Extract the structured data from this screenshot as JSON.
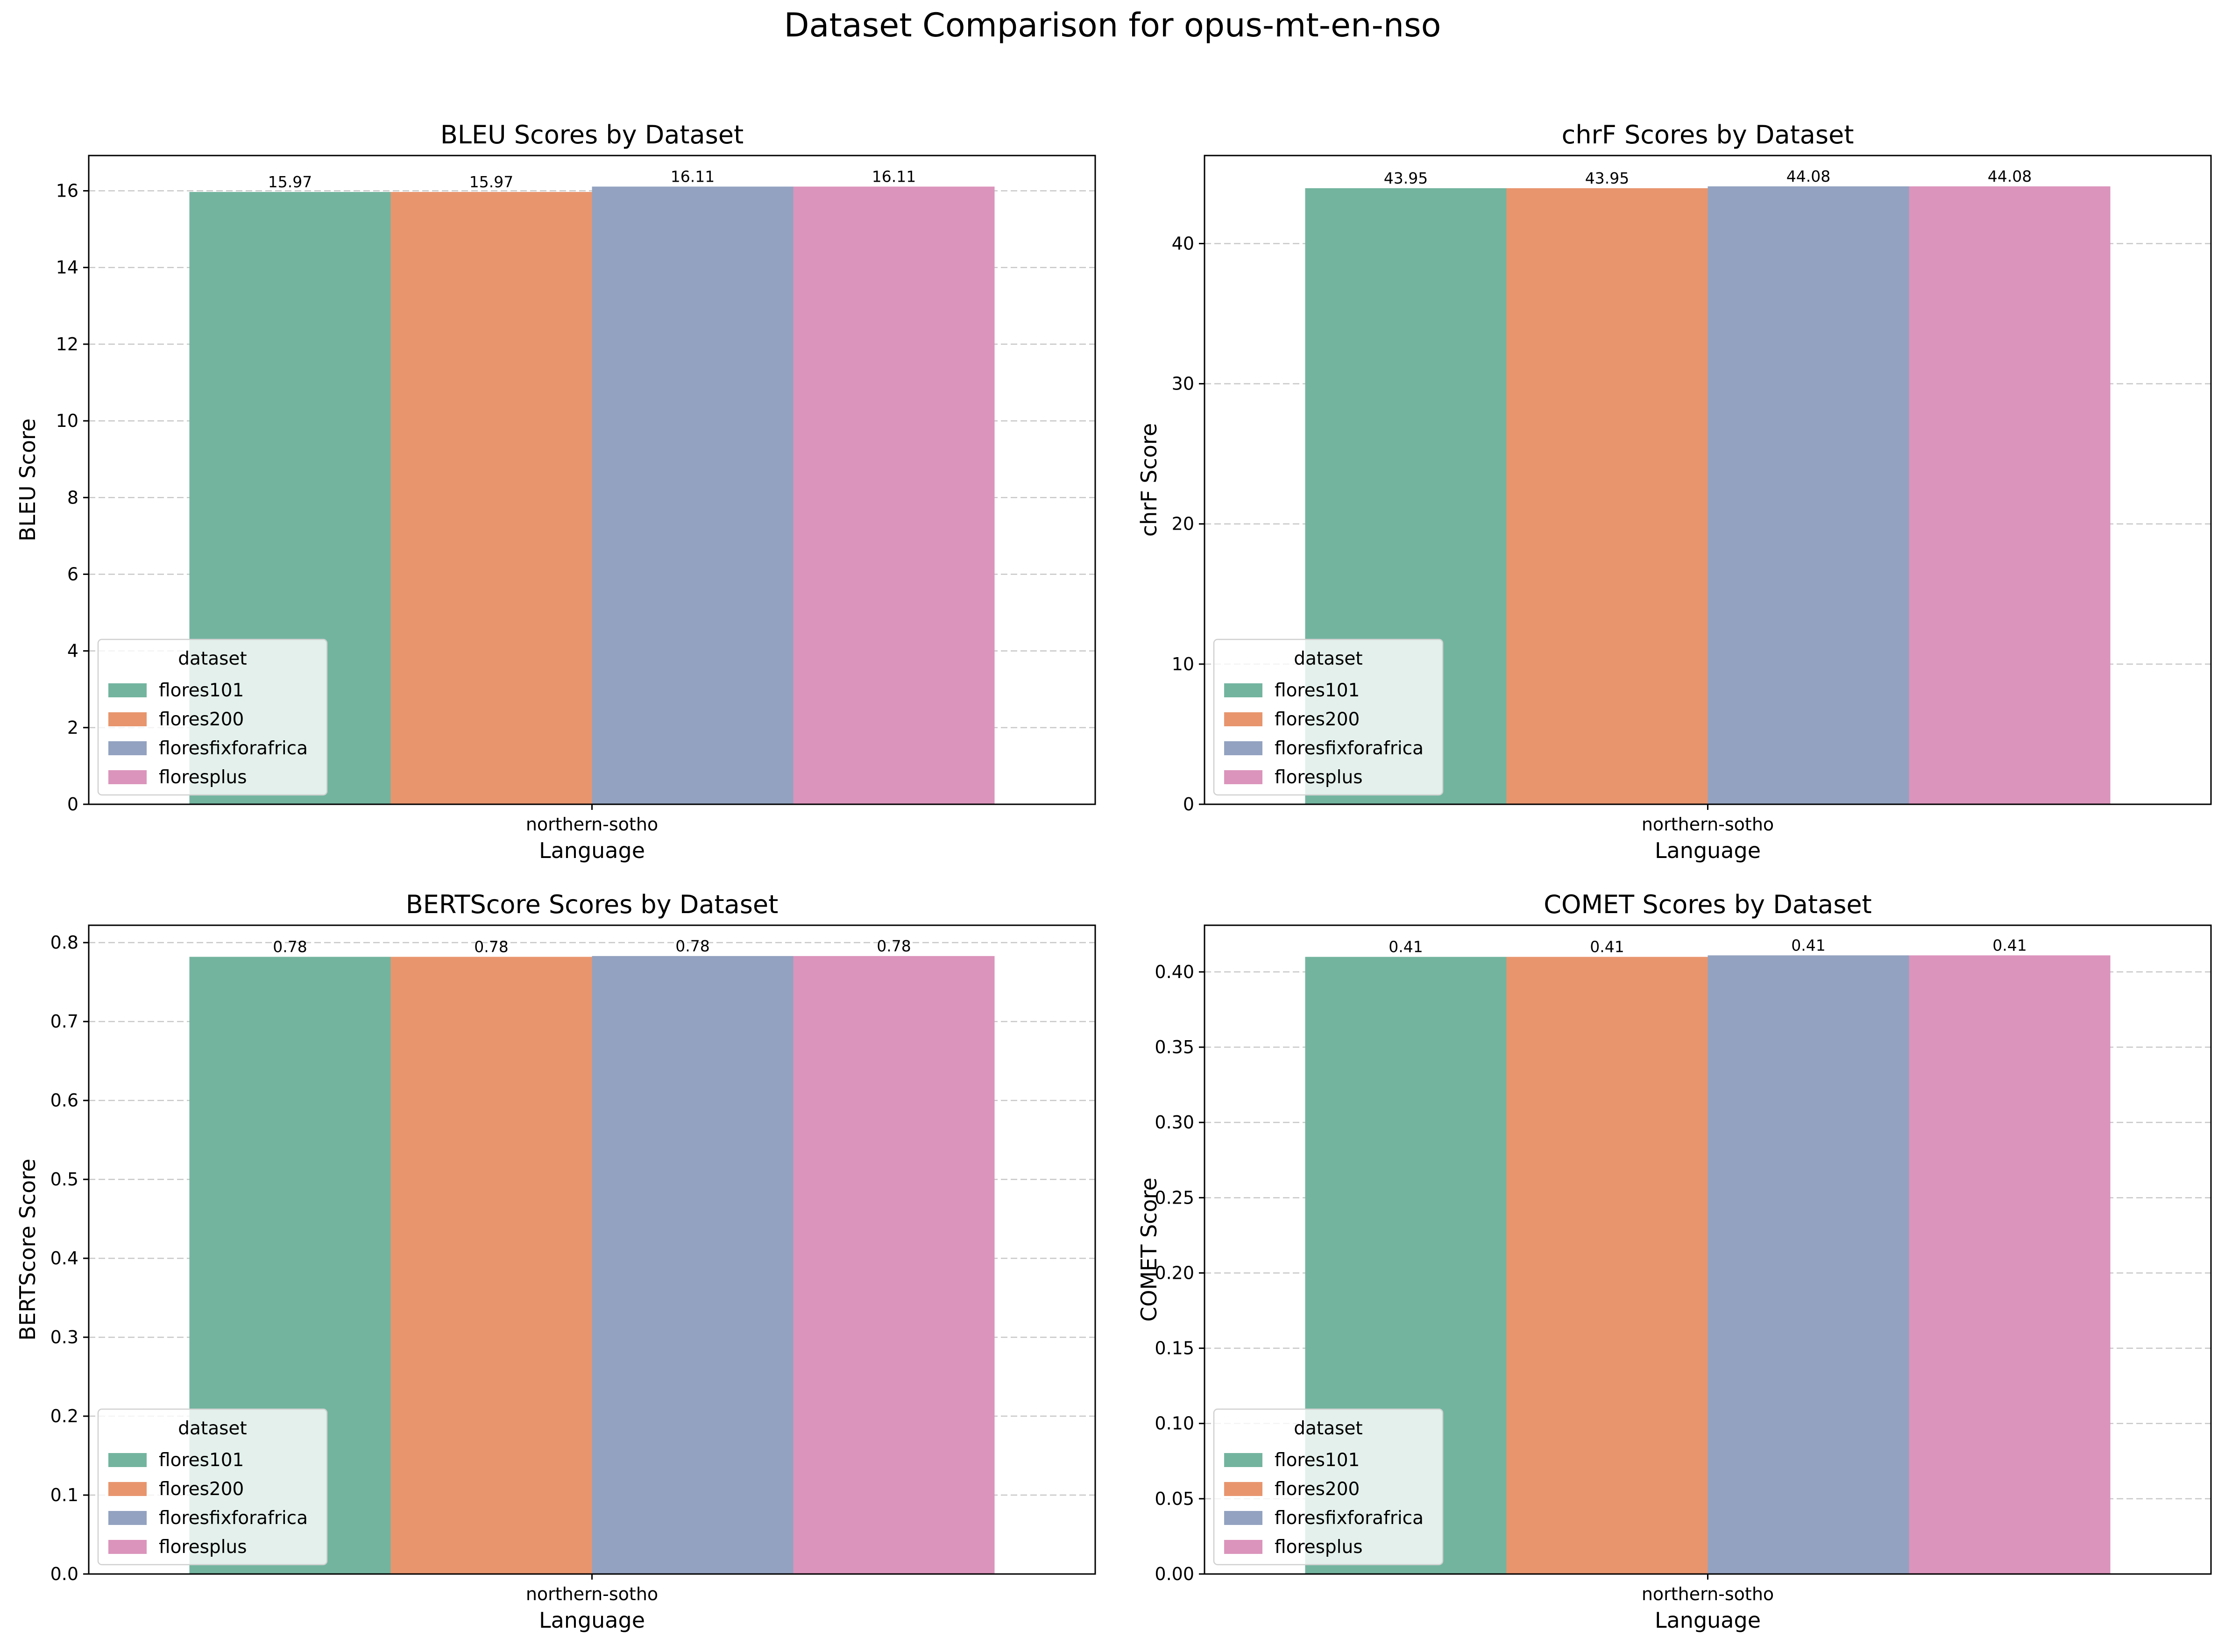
{
  "figure": {
    "title": "Dataset Comparison for opus-mt-en-nso"
  },
  "palette": {
    "flores101": "#73b49f",
    "flores200": "#e8956e",
    "floresfixforafrica": "#93a2c0",
    "floresplus": "#db94bc",
    "grid": "#c8c8c8",
    "legend_border": "#d0d0d0"
  },
  "chart_data": [
    {
      "type": "bar",
      "title": "BLEU Scores by Dataset",
      "xlabel": "Language",
      "ylabel": "BLEU Score",
      "categories": [
        "northern-sotho"
      ],
      "series": [
        {
          "name": "flores101",
          "values": [
            15.97
          ],
          "label": "15.97"
        },
        {
          "name": "flores200",
          "values": [
            15.97
          ],
          "label": "15.97"
        },
        {
          "name": "floresfixforafrica",
          "values": [
            16.11
          ],
          "label": "16.11"
        },
        {
          "name": "floresplus",
          "values": [
            16.11
          ],
          "label": "16.11"
        }
      ],
      "ylim": [
        0,
        16.92
      ],
      "yticks": [
        0,
        2,
        4,
        6,
        8,
        10,
        12,
        14,
        16
      ],
      "ytick_labels": [
        "0",
        "2",
        "4",
        "6",
        "8",
        "10",
        "12",
        "14",
        "16"
      ],
      "grid": true,
      "legend_title": "dataset",
      "legend_position": "lower-left"
    },
    {
      "type": "bar",
      "title": "chrF Scores by Dataset",
      "xlabel": "Language",
      "ylabel": "chrF Score",
      "categories": [
        "northern-sotho"
      ],
      "series": [
        {
          "name": "flores101",
          "values": [
            43.95
          ],
          "label": "43.95"
        },
        {
          "name": "flores200",
          "values": [
            43.95
          ],
          "label": "43.95"
        },
        {
          "name": "floresfixforafrica",
          "values": [
            44.08
          ],
          "label": "44.08"
        },
        {
          "name": "floresplus",
          "values": [
            44.08
          ],
          "label": "44.08"
        }
      ],
      "ylim": [
        0,
        46.28
      ],
      "yticks": [
        0,
        10,
        20,
        30,
        40
      ],
      "ytick_labels": [
        "0",
        "10",
        "20",
        "30",
        "40"
      ],
      "grid": true,
      "legend_title": "dataset",
      "legend_position": "lower-left"
    },
    {
      "type": "bar",
      "title": "BERTScore Scores by Dataset",
      "xlabel": "Language",
      "ylabel": "BERTScore Score",
      "categories": [
        "northern-sotho"
      ],
      "series": [
        {
          "name": "flores101",
          "values": [
            0.782
          ],
          "label": "0.78"
        },
        {
          "name": "flores200",
          "values": [
            0.782
          ],
          "label": "0.78"
        },
        {
          "name": "floresfixforafrica",
          "values": [
            0.783
          ],
          "label": "0.78"
        },
        {
          "name": "floresplus",
          "values": [
            0.783
          ],
          "label": "0.78"
        }
      ],
      "ylim": [
        0,
        0.822
      ],
      "yticks": [
        0,
        0.1,
        0.2,
        0.3,
        0.4,
        0.5,
        0.6,
        0.7,
        0.8
      ],
      "ytick_labels": [
        "0.0",
        "0.1",
        "0.2",
        "0.3",
        "0.4",
        "0.5",
        "0.6",
        "0.7",
        "0.8"
      ],
      "grid": true,
      "legend_title": "dataset",
      "legend_position": "lower-left"
    },
    {
      "type": "bar",
      "title": "COMET Scores by Dataset",
      "xlabel": "Language",
      "ylabel": "COMET Score",
      "categories": [
        "northern-sotho"
      ],
      "series": [
        {
          "name": "flores101",
          "values": [
            0.41
          ],
          "label": "0.41"
        },
        {
          "name": "flores200",
          "values": [
            0.41
          ],
          "label": "0.41"
        },
        {
          "name": "floresfixforafrica",
          "values": [
            0.411
          ],
          "label": "0.41"
        },
        {
          "name": "floresplus",
          "values": [
            0.411
          ],
          "label": "0.41"
        }
      ],
      "ylim": [
        0,
        0.431
      ],
      "yticks": [
        0,
        0.05,
        0.1,
        0.15,
        0.2,
        0.25,
        0.3,
        0.35,
        0.4
      ],
      "ytick_labels": [
        "0.00",
        "0.05",
        "0.10",
        "0.15",
        "0.20",
        "0.25",
        "0.30",
        "0.35",
        "0.40"
      ],
      "grid": true,
      "legend_title": "dataset",
      "legend_position": "lower-left"
    }
  ]
}
